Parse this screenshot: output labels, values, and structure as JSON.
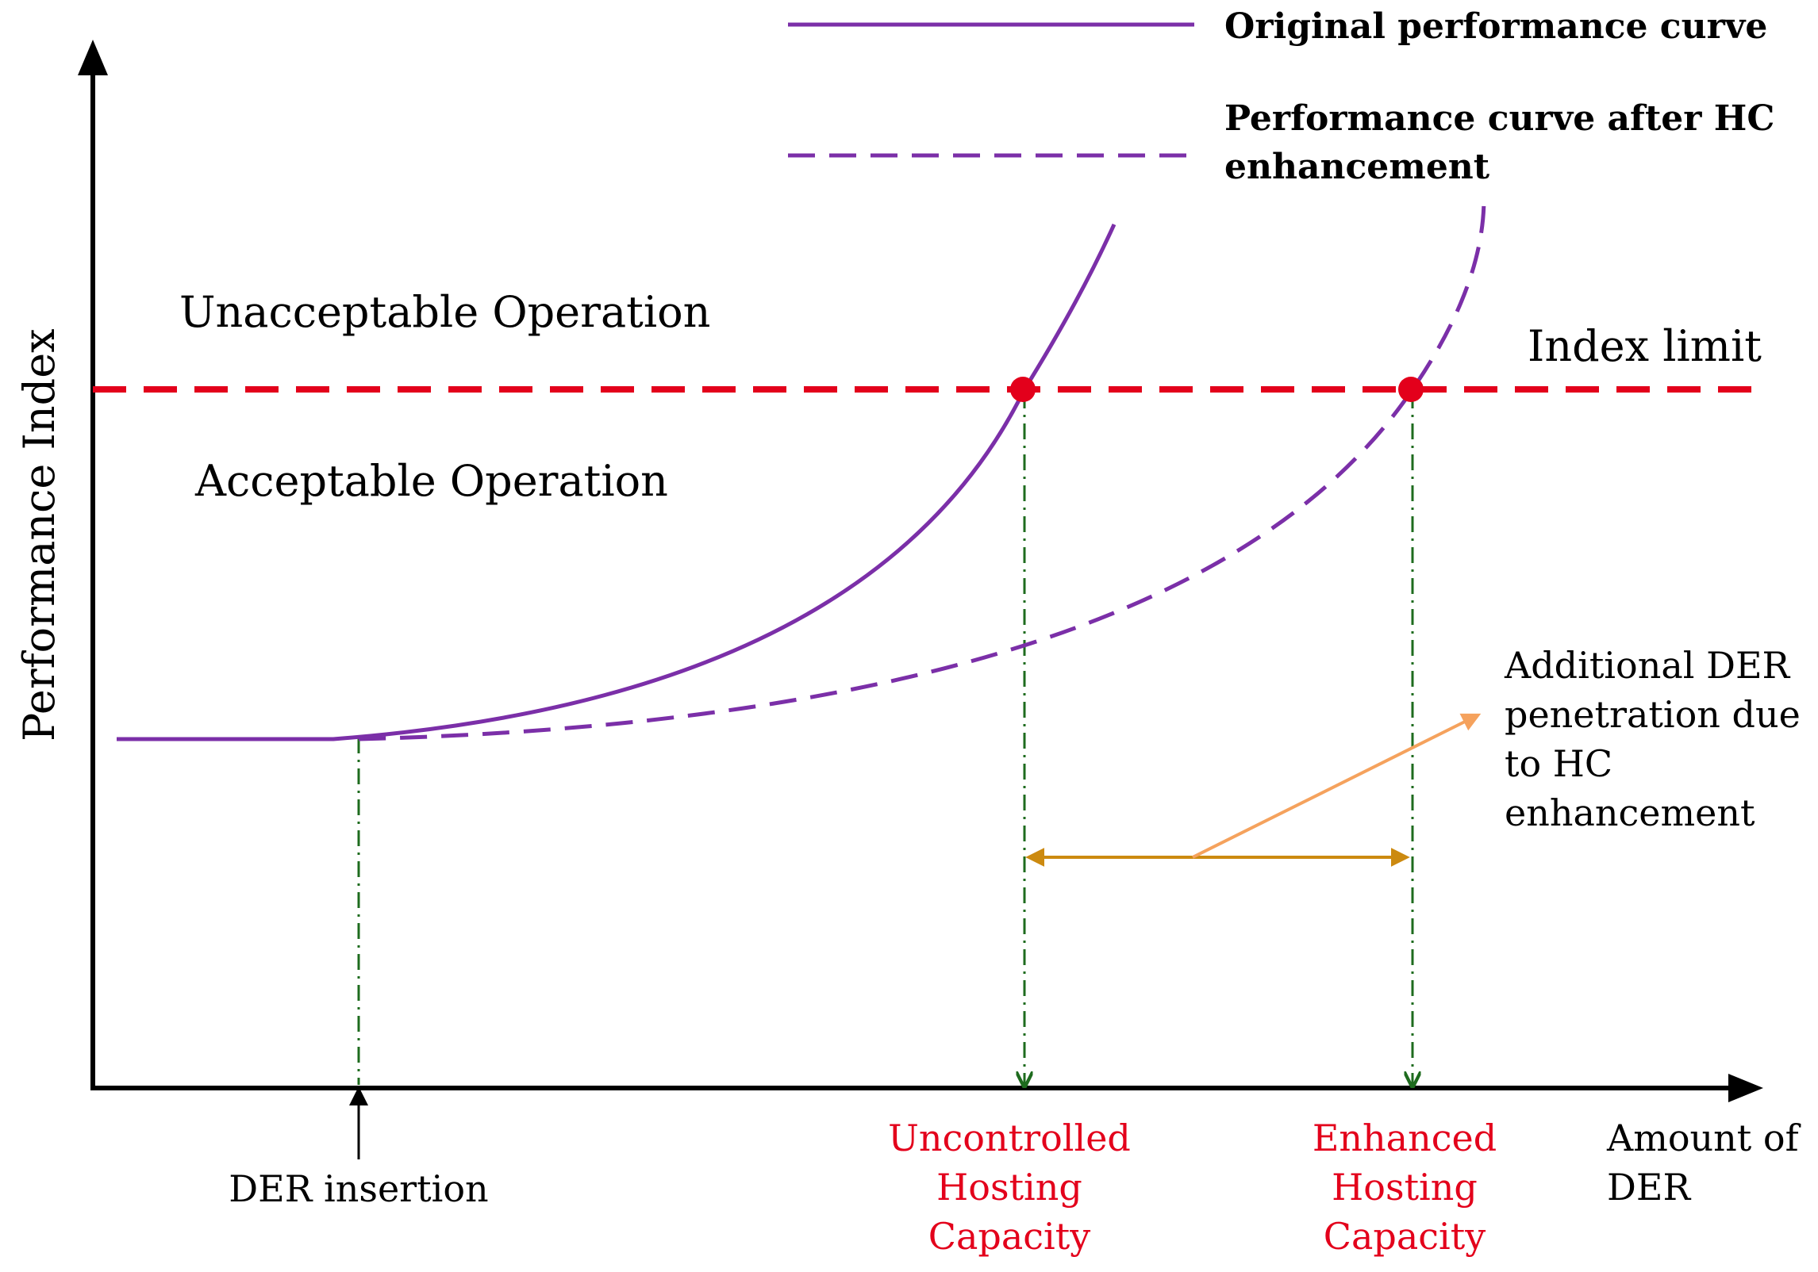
{
  "legend": {
    "original_label": "Original performance curve",
    "enhanced_label_line1": "Performance curve after HC",
    "enhanced_label_line2": "enhancement"
  },
  "axes": {
    "y_label": "Performance Index",
    "x_label_line1": "Amount of",
    "x_label_line2": "DER"
  },
  "regions": {
    "unacceptable": "Unacceptable Operation",
    "acceptable": "Acceptable Operation"
  },
  "limit": {
    "label": "Index limit"
  },
  "markers": {
    "der_insertion": "DER insertion",
    "uncontrolled_line1": "Uncontrolled",
    "uncontrolled_line2": "Hosting",
    "uncontrolled_line3": "Capacity",
    "enhanced_line1": "Enhanced",
    "enhanced_line2": "Hosting",
    "enhanced_line3": "Capacity"
  },
  "annotation": {
    "line1": "Additional DER",
    "line2": "penetration due",
    "line3": "to HC",
    "line4": "enhancement"
  },
  "colors": {
    "curve": "#7B2FA8",
    "limit": "#E3001B",
    "guide": "#1E6B1E",
    "range_arrow": "#CC8A10",
    "annotation_arrow": "#F5A25D",
    "axis": "#000000",
    "capacity_text": "#E3001B"
  }
}
